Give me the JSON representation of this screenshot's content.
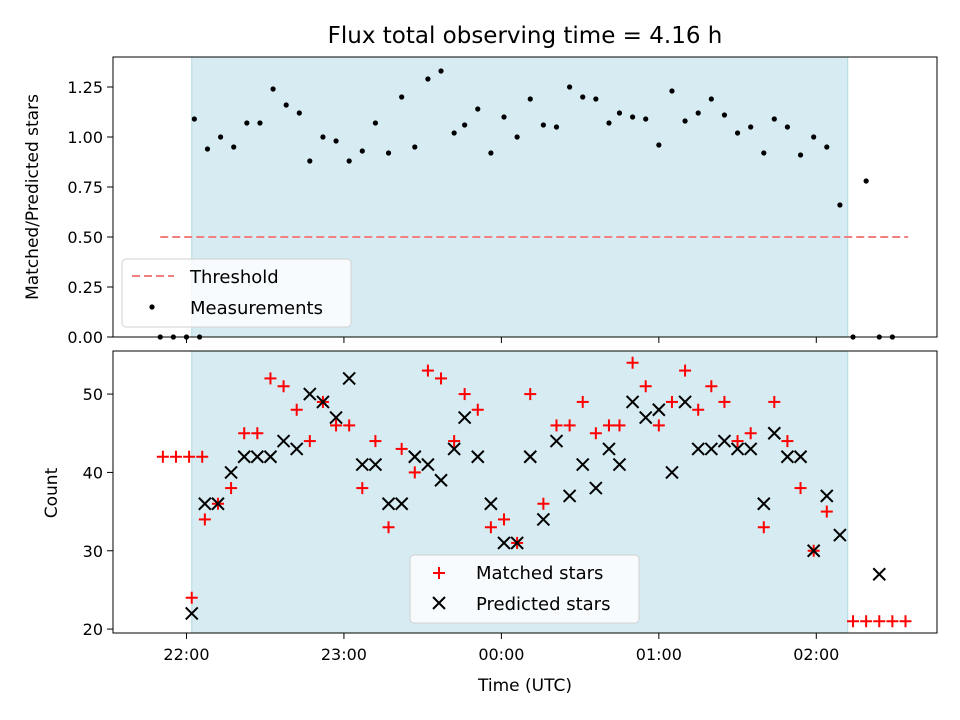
{
  "chart_data": [
    {
      "type": "scatter",
      "title": "Flux total observing time = 4.16 h",
      "ylabel": "Matched/Predicted stars",
      "xlabel": "",
      "xlim": [
        "21:32",
        "02:46"
      ],
      "ylim": [
        0,
        1.4
      ],
      "yticks": [
        "0.00",
        "0.25",
        "0.50",
        "0.75",
        "1.00",
        "1.25"
      ],
      "shaded_interval": [
        "22:02",
        "02:12"
      ],
      "legend_position": "lower-left",
      "series": [
        {
          "name": "Threshold",
          "style": "dashed-line",
          "color": "#f08080",
          "points": [
            [
              "21:50",
              0.5
            ],
            [
              "02:35",
              0.5
            ]
          ]
        },
        {
          "name": "Measurements",
          "style": "dot",
          "color": "#000000",
          "points": [
            [
              "21:50",
              0.0
            ],
            [
              "21:55",
              0.0
            ],
            [
              "22:00",
              0.0
            ],
            [
              "22:05",
              0.0
            ],
            [
              "22:03",
              1.09
            ],
            [
              "22:08",
              0.94
            ],
            [
              "22:13",
              1.0
            ],
            [
              "22:18",
              0.95
            ],
            [
              "22:23",
              1.07
            ],
            [
              "22:28",
              1.07
            ],
            [
              "22:33",
              1.24
            ],
            [
              "22:38",
              1.16
            ],
            [
              "22:43",
              1.12
            ],
            [
              "22:47",
              0.88
            ],
            [
              "22:52",
              1.0
            ],
            [
              "22:57",
              0.98
            ],
            [
              "23:02",
              0.88
            ],
            [
              "23:07",
              0.93
            ],
            [
              "23:12",
              1.07
            ],
            [
              "23:17",
              0.92
            ],
            [
              "23:22",
              1.2
            ],
            [
              "23:27",
              0.95
            ],
            [
              "23:32",
              1.29
            ],
            [
              "23:37",
              1.33
            ],
            [
              "23:42",
              1.02
            ],
            [
              "23:46",
              1.06
            ],
            [
              "23:51",
              1.14
            ],
            [
              "23:56",
              0.92
            ],
            [
              "00:01",
              1.1
            ],
            [
              "00:06",
              1.0
            ],
            [
              "00:11",
              1.19
            ],
            [
              "00:16",
              1.06
            ],
            [
              "00:21",
              1.05
            ],
            [
              "00:26",
              1.25
            ],
            [
              "00:31",
              1.2
            ],
            [
              "00:36",
              1.19
            ],
            [
              "00:41",
              1.07
            ],
            [
              "00:45",
              1.12
            ],
            [
              "00:50",
              1.1
            ],
            [
              "00:55",
              1.09
            ],
            [
              "01:00",
              0.96
            ],
            [
              "01:05",
              1.23
            ],
            [
              "01:10",
              1.08
            ],
            [
              "01:15",
              1.12
            ],
            [
              "01:20",
              1.19
            ],
            [
              "01:25",
              1.11
            ],
            [
              "01:30",
              1.02
            ],
            [
              "01:35",
              1.05
            ],
            [
              "01:40",
              0.92
            ],
            [
              "01:44",
              1.09
            ],
            [
              "01:49",
              1.05
            ],
            [
              "01:54",
              0.91
            ],
            [
              "01:59",
              1.0
            ],
            [
              "02:04",
              0.95
            ],
            [
              "02:09",
              0.66
            ],
            [
              "02:14",
              0.0
            ],
            [
              "02:19",
              0.78
            ],
            [
              "02:24",
              0.0
            ],
            [
              "02:29",
              0.0
            ]
          ]
        }
      ]
    },
    {
      "type": "scatter",
      "title": "",
      "ylabel": "Count",
      "xlabel": "Time (UTC)",
      "xlim": [
        "21:32",
        "02:46"
      ],
      "ylim": [
        19.5,
        55.5
      ],
      "yticks": [
        "20",
        "30",
        "40",
        "50"
      ],
      "xticks": [
        "22:00",
        "23:00",
        "00:00",
        "01:00",
        "02:00"
      ],
      "shaded_interval": [
        "22:02",
        "02:12"
      ],
      "legend_position": "lower-center",
      "series": [
        {
          "name": "Matched stars",
          "marker": "plus",
          "color": "#ff0000",
          "points": [
            [
              "21:51",
              42
            ],
            [
              "21:56",
              42
            ],
            [
              "22:01",
              42
            ],
            [
              "22:06",
              42
            ],
            [
              "22:02",
              24
            ],
            [
              "22:07",
              34
            ],
            [
              "22:12",
              36
            ],
            [
              "22:17",
              38
            ],
            [
              "22:22",
              45
            ],
            [
              "22:27",
              45
            ],
            [
              "22:32",
              52
            ],
            [
              "22:37",
              51
            ],
            [
              "22:42",
              48
            ],
            [
              "22:47",
              44
            ],
            [
              "22:52",
              49
            ],
            [
              "22:57",
              46
            ],
            [
              "23:02",
              46
            ],
            [
              "23:07",
              38
            ],
            [
              "23:12",
              44
            ],
            [
              "23:17",
              33
            ],
            [
              "23:22",
              43
            ],
            [
              "23:27",
              40
            ],
            [
              "23:32",
              53
            ],
            [
              "23:37",
              52
            ],
            [
              "23:42",
              44
            ],
            [
              "23:46",
              50
            ],
            [
              "23:51",
              48
            ],
            [
              "23:56",
              33
            ],
            [
              "00:01",
              34
            ],
            [
              "00:06",
              31
            ],
            [
              "00:11",
              50
            ],
            [
              "00:16",
              36
            ],
            [
              "00:21",
              46
            ],
            [
              "00:26",
              46
            ],
            [
              "00:31",
              49
            ],
            [
              "00:36",
              45
            ],
            [
              "00:41",
              46
            ],
            [
              "00:45",
              46
            ],
            [
              "00:50",
              54
            ],
            [
              "00:55",
              51
            ],
            [
              "01:00",
              46
            ],
            [
              "01:05",
              49
            ],
            [
              "01:10",
              53
            ],
            [
              "01:15",
              48
            ],
            [
              "01:20",
              51
            ],
            [
              "01:25",
              49
            ],
            [
              "01:30",
              44
            ],
            [
              "01:35",
              45
            ],
            [
              "01:40",
              33
            ],
            [
              "01:44",
              49
            ],
            [
              "01:49",
              44
            ],
            [
              "01:54",
              38
            ],
            [
              "01:59",
              30
            ],
            [
              "02:04",
              35
            ],
            [
              "02:14",
              21
            ],
            [
              "02:19",
              21
            ],
            [
              "02:24",
              21
            ],
            [
              "02:29",
              21
            ],
            [
              "02:34",
              21
            ]
          ]
        },
        {
          "name": "Predicted stars",
          "marker": "x",
          "color": "#000000",
          "points": [
            [
              "22:02",
              22
            ],
            [
              "22:07",
              36
            ],
            [
              "22:12",
              36
            ],
            [
              "22:17",
              40
            ],
            [
              "22:22",
              42
            ],
            [
              "22:27",
              42
            ],
            [
              "22:32",
              42
            ],
            [
              "22:37",
              44
            ],
            [
              "22:42",
              43
            ],
            [
              "22:47",
              50
            ],
            [
              "22:52",
              49
            ],
            [
              "22:57",
              47
            ],
            [
              "23:02",
              52
            ],
            [
              "23:07",
              41
            ],
            [
              "23:12",
              41
            ],
            [
              "23:17",
              36
            ],
            [
              "23:22",
              36
            ],
            [
              "23:27",
              42
            ],
            [
              "23:32",
              41
            ],
            [
              "23:37",
              39
            ],
            [
              "23:42",
              43
            ],
            [
              "23:46",
              47
            ],
            [
              "23:51",
              42
            ],
            [
              "23:56",
              36
            ],
            [
              "00:01",
              31
            ],
            [
              "00:06",
              31
            ],
            [
              "00:11",
              42
            ],
            [
              "00:16",
              34
            ],
            [
              "00:21",
              44
            ],
            [
              "00:26",
              37
            ],
            [
              "00:31",
              41
            ],
            [
              "00:36",
              38
            ],
            [
              "00:41",
              43
            ],
            [
              "00:45",
              41
            ],
            [
              "00:50",
              49
            ],
            [
              "00:55",
              47
            ],
            [
              "01:00",
              48
            ],
            [
              "01:05",
              40
            ],
            [
              "01:10",
              49
            ],
            [
              "01:15",
              43
            ],
            [
              "01:20",
              43
            ],
            [
              "01:25",
              44
            ],
            [
              "01:30",
              43
            ],
            [
              "01:35",
              43
            ],
            [
              "01:40",
              36
            ],
            [
              "01:44",
              45
            ],
            [
              "01:49",
              42
            ],
            [
              "01:54",
              42
            ],
            [
              "01:59",
              30
            ],
            [
              "02:04",
              37
            ],
            [
              "02:09",
              32
            ],
            [
              "02:24",
              27
            ]
          ]
        }
      ]
    }
  ]
}
